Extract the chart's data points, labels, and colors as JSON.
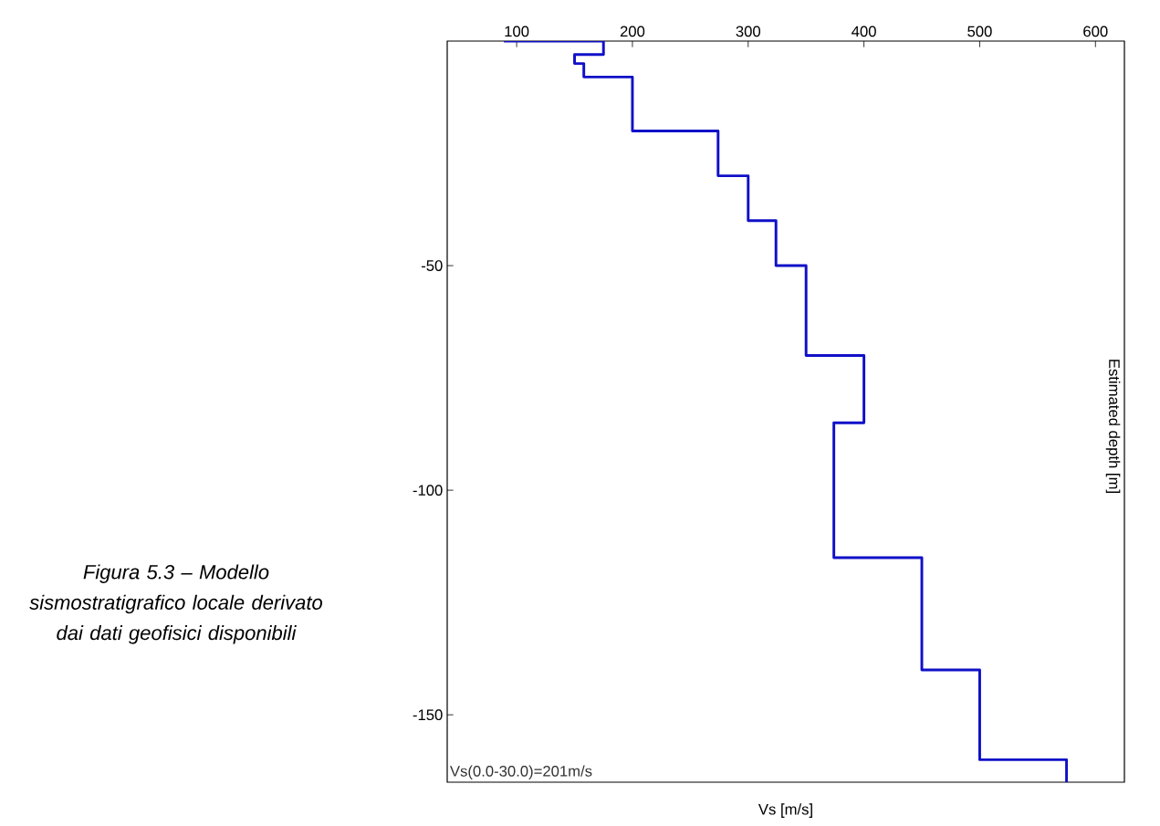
{
  "chart_data": {
    "type": "line",
    "xlabel": "Vs [m/s]",
    "ylabel": "Estimated depth [m]",
    "annotations": [
      "Vs(0.0-30.0)=201m/s",
      "Figura 5.3  – Modello sismostratigrafico locale derivato dai dati geofisici disponibili"
    ],
    "xlim": [
      40,
      625
    ],
    "ylim": [
      -165,
      0
    ],
    "xticks": [
      100,
      200,
      300,
      400,
      500,
      600
    ],
    "yticks": [
      -50,
      -100,
      -150
    ],
    "series": [
      {
        "color": "#1010c8",
        "x": [
          89,
          175,
          175,
          150,
          150,
          158,
          158,
          200,
          200,
          274,
          274,
          300,
          300,
          324,
          324,
          350,
          350,
          400,
          400,
          374,
          374,
          450,
          450,
          500,
          500,
          575,
          575
        ],
        "values": [
          0,
          0,
          -3,
          -3,
          -5,
          -5,
          -8,
          -8,
          -20,
          -20,
          -30,
          -30,
          -40,
          -40,
          -50,
          -50,
          -70,
          -70,
          -85,
          -85,
          -115,
          -115,
          -140,
          -140,
          -160,
          -160,
          -165
        ]
      }
    ],
    "marker": "none",
    "line_style": "solid"
  }
}
